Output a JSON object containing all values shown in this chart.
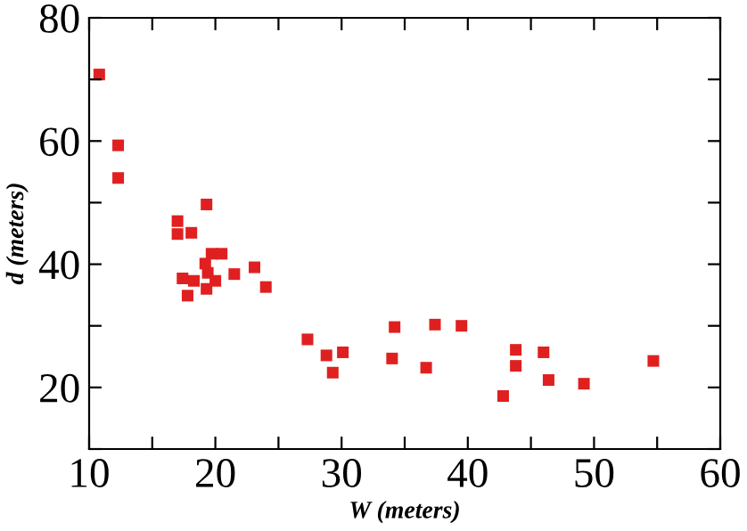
{
  "chart_data": {
    "type": "scatter",
    "xlabel": "W (meters)",
    "ylabel": "d (meters)",
    "x": [
      10.8,
      12.3,
      12.3,
      19.3,
      17.0,
      17.0,
      18.1,
      19.7,
      20.5,
      19.2,
      19.4,
      21.5,
      23.1,
      17.4,
      18.3,
      20.0,
      19.3,
      17.8,
      24.0,
      27.3,
      28.8,
      30.1,
      29.3,
      34.2,
      34.0,
      37.4,
      39.5,
      36.7,
      43.8,
      43.8,
      42.8,
      46.0,
      46.4,
      49.2,
      54.7
    ],
    "values": [
      70.8,
      59.3,
      54.0,
      49.7,
      47.0,
      44.9,
      45.1,
      41.7,
      41.7,
      40.1,
      38.6,
      38.4,
      39.5,
      37.7,
      37.3,
      37.3,
      36.0,
      34.9,
      36.3,
      27.8,
      25.2,
      25.7,
      22.4,
      29.8,
      24.7,
      30.2,
      30.0,
      23.2,
      26.1,
      23.5,
      18.6,
      25.7,
      21.2,
      20.6,
      24.3
    ],
    "color": "#e02020",
    "marker": "square",
    "xlim": [
      10,
      60
    ],
    "ylim": [
      10,
      80
    ],
    "xticks": [
      10,
      {
        "value": 15,
        "label": null
      },
      20,
      {
        "value": 25,
        "label": null
      },
      30,
      {
        "value": 35,
        "label": null
      },
      40,
      {
        "value": 45,
        "label": null
      },
      50,
      {
        "value": 55,
        "label": null
      },
      60
    ],
    "yticks": [
      {
        "value": 10,
        "label": null
      },
      20,
      {
        "value": 30,
        "label": null
      },
      40,
      {
        "value": 50,
        "label": null
      },
      60,
      {
        "value": 70,
        "label": null
      },
      80
    ],
    "grid": false
  }
}
